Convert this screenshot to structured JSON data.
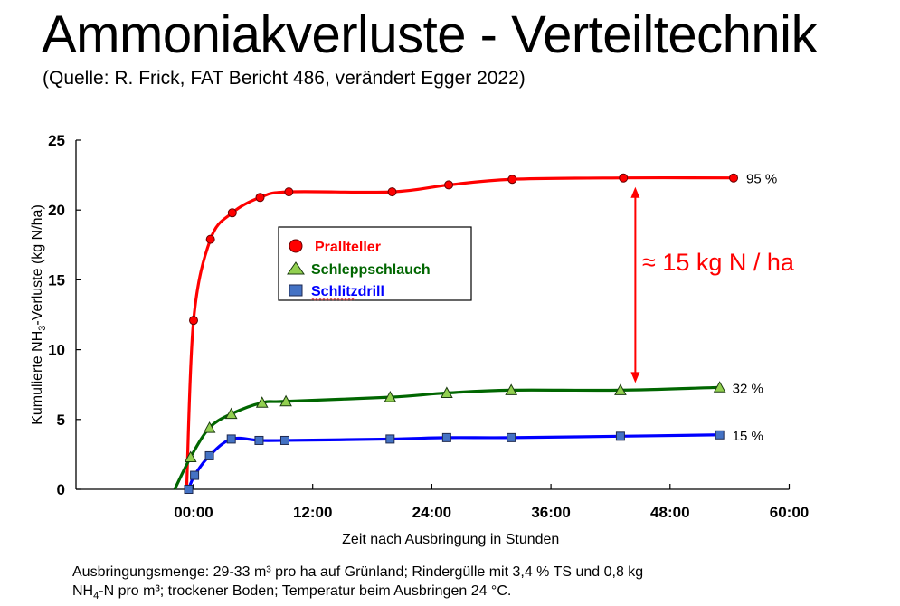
{
  "slide": {
    "title": "Ammoniakverluste - Verteiltechnik",
    "subtitle": "(Quelle: R. Frick, FAT Bericht 486, verändert Egger 2022)",
    "footnote_line1": "Ausbringungsmenge: 29-33 m³ pro ha auf Grünland; Rindergülle mit 3,4 % TS und 0,8 kg",
    "footnote_line2_pre": "NH",
    "footnote_line2_sub": "4",
    "footnote_line2_post": "-N pro m³; trockener Boden; Temperatur beim Ausbringen 24 °C."
  },
  "chart_data": {
    "type": "line",
    "title": "Ammoniakverluste - Verteiltechnik",
    "xlabel": "Zeit nach Ausbringung in Stunden",
    "ylabel": "Kumulierte NH3-Verluste (kg N/ha)",
    "ylabel_parts": {
      "pre": "Kumulierte NH",
      "sub": "3",
      "post": "-Verluste (kg N/ha)"
    },
    "xlim": [
      -11,
      60
    ],
    "ylim": [
      0,
      25
    ],
    "x_ticks": [
      0,
      12,
      24,
      36,
      48,
      60
    ],
    "x_tick_labels": [
      "00:00",
      "12:00",
      "24:00",
      "36:00",
      "48:00",
      "60:00"
    ],
    "y_ticks": [
      0,
      5,
      10,
      15,
      20,
      25
    ],
    "y_tick_labels": [
      "0",
      "5",
      "10",
      "15",
      "20",
      "25"
    ],
    "grid": false,
    "legend_position": "upper-left-center (boxed)",
    "series": [
      {
        "name": "Prallteller",
        "color": "#ff0000",
        "marker": "circle",
        "marker_fill": "#ff0000",
        "x": [
          0,
          1.7,
          3.9,
          6.7,
          9.6,
          20.0,
          25.7,
          32.1,
          43.3,
          54.4
        ],
        "y": [
          12.1,
          17.9,
          19.8,
          20.9,
          21.3,
          21.3,
          21.8,
          22.2,
          22.3,
          22.3
        ],
        "end_label": "95 %"
      },
      {
        "name": "Schleppschlauch",
        "color": "#006600",
        "marker": "triangle",
        "marker_fill": "#92d050",
        "x": [
          -0.3,
          1.6,
          3.8,
          6.9,
          9.3,
          19.8,
          25.5,
          32.0,
          43.0,
          53.0
        ],
        "y": [
          2.3,
          4.4,
          5.4,
          6.2,
          6.3,
          6.6,
          6.9,
          7.1,
          7.1,
          7.3
        ],
        "end_label": "32 %"
      },
      {
        "name": "Schlitzdrill",
        "color": "#0000ff",
        "marker": "square",
        "marker_fill": "#4472c4",
        "x": [
          -0.5,
          0.1,
          1.6,
          3.8,
          6.6,
          9.2,
          19.8,
          25.5,
          32.0,
          43.0,
          53.0
        ],
        "y": [
          0.0,
          1.0,
          2.4,
          3.6,
          3.5,
          3.5,
          3.6,
          3.7,
          3.7,
          3.8,
          3.9
        ],
        "end_label": "15 %"
      }
    ],
    "annotations": [
      {
        "text": "≈ 15 kg N / ha",
        "color": "#ff0000",
        "type": "double-arrow",
        "x": 44.5,
        "y_from": 7.1,
        "y_to": 22.3
      },
      {
        "text": "95 %",
        "series": "Prallteller"
      },
      {
        "text": "32 %",
        "series": "Schleppschlauch"
      },
      {
        "text": "15 %",
        "series": "Schlitzdrill"
      }
    ]
  }
}
